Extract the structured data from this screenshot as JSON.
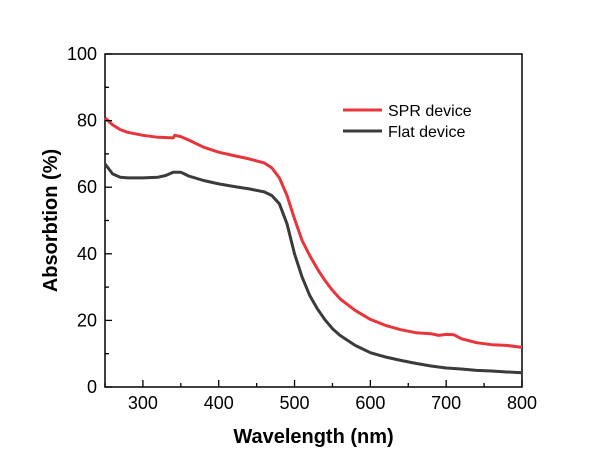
{
  "chart_data": {
    "type": "line",
    "xlabel": "Wavelength (nm)",
    "ylabel": "Absorbtion (%)",
    "xlim": [
      250,
      800
    ],
    "ylim": [
      0,
      100
    ],
    "xticks": [
      300,
      400,
      500,
      600,
      700,
      800
    ],
    "yticks": [
      0,
      20,
      40,
      60,
      80,
      100
    ],
    "grid": false,
    "legend_position": "top-right",
    "series": [
      {
        "name": "SPR device",
        "color": "#e8353b",
        "x": [
          250,
          260,
          270,
          280,
          300,
          320,
          340,
          342,
          350,
          360,
          380,
          400,
          420,
          440,
          460,
          470,
          480,
          490,
          500,
          510,
          520,
          530,
          540,
          550,
          560,
          580,
          600,
          620,
          640,
          660,
          680,
          690,
          700,
          710,
          720,
          740,
          760,
          780,
          800
        ],
        "y": [
          80.8,
          78.7,
          77.3,
          76.5,
          75.6,
          75.0,
          74.8,
          75.6,
          75.2,
          74.2,
          72.0,
          70.5,
          69.5,
          68.5,
          67.3,
          65.8,
          62.8,
          57.5,
          50.5,
          44.0,
          39.5,
          35.5,
          32.0,
          29.0,
          26.5,
          23.0,
          20.3,
          18.5,
          17.2,
          16.3,
          16.0,
          15.5,
          15.8,
          15.7,
          14.5,
          13.3,
          12.7,
          12.5,
          11.9
        ]
      },
      {
        "name": "Flat device",
        "color": "#3b3b3b",
        "x": [
          250,
          260,
          270,
          280,
          300,
          320,
          330,
          340,
          350,
          360,
          380,
          400,
          420,
          440,
          460,
          470,
          480,
          490,
          500,
          510,
          520,
          530,
          540,
          550,
          560,
          580,
          600,
          620,
          640,
          660,
          680,
          700,
          720,
          740,
          760,
          780,
          800
        ],
        "y": [
          67.0,
          64.0,
          63.0,
          62.8,
          62.8,
          63.0,
          63.5,
          64.5,
          64.5,
          63.4,
          62.0,
          61.0,
          60.2,
          59.5,
          58.6,
          57.5,
          55.0,
          49.0,
          40.0,
          33.0,
          27.5,
          23.5,
          20.2,
          17.5,
          15.5,
          12.5,
          10.3,
          9.0,
          8.0,
          7.1,
          6.3,
          5.7,
          5.4,
          5.0,
          4.8,
          4.5,
          4.3
        ]
      }
    ]
  }
}
